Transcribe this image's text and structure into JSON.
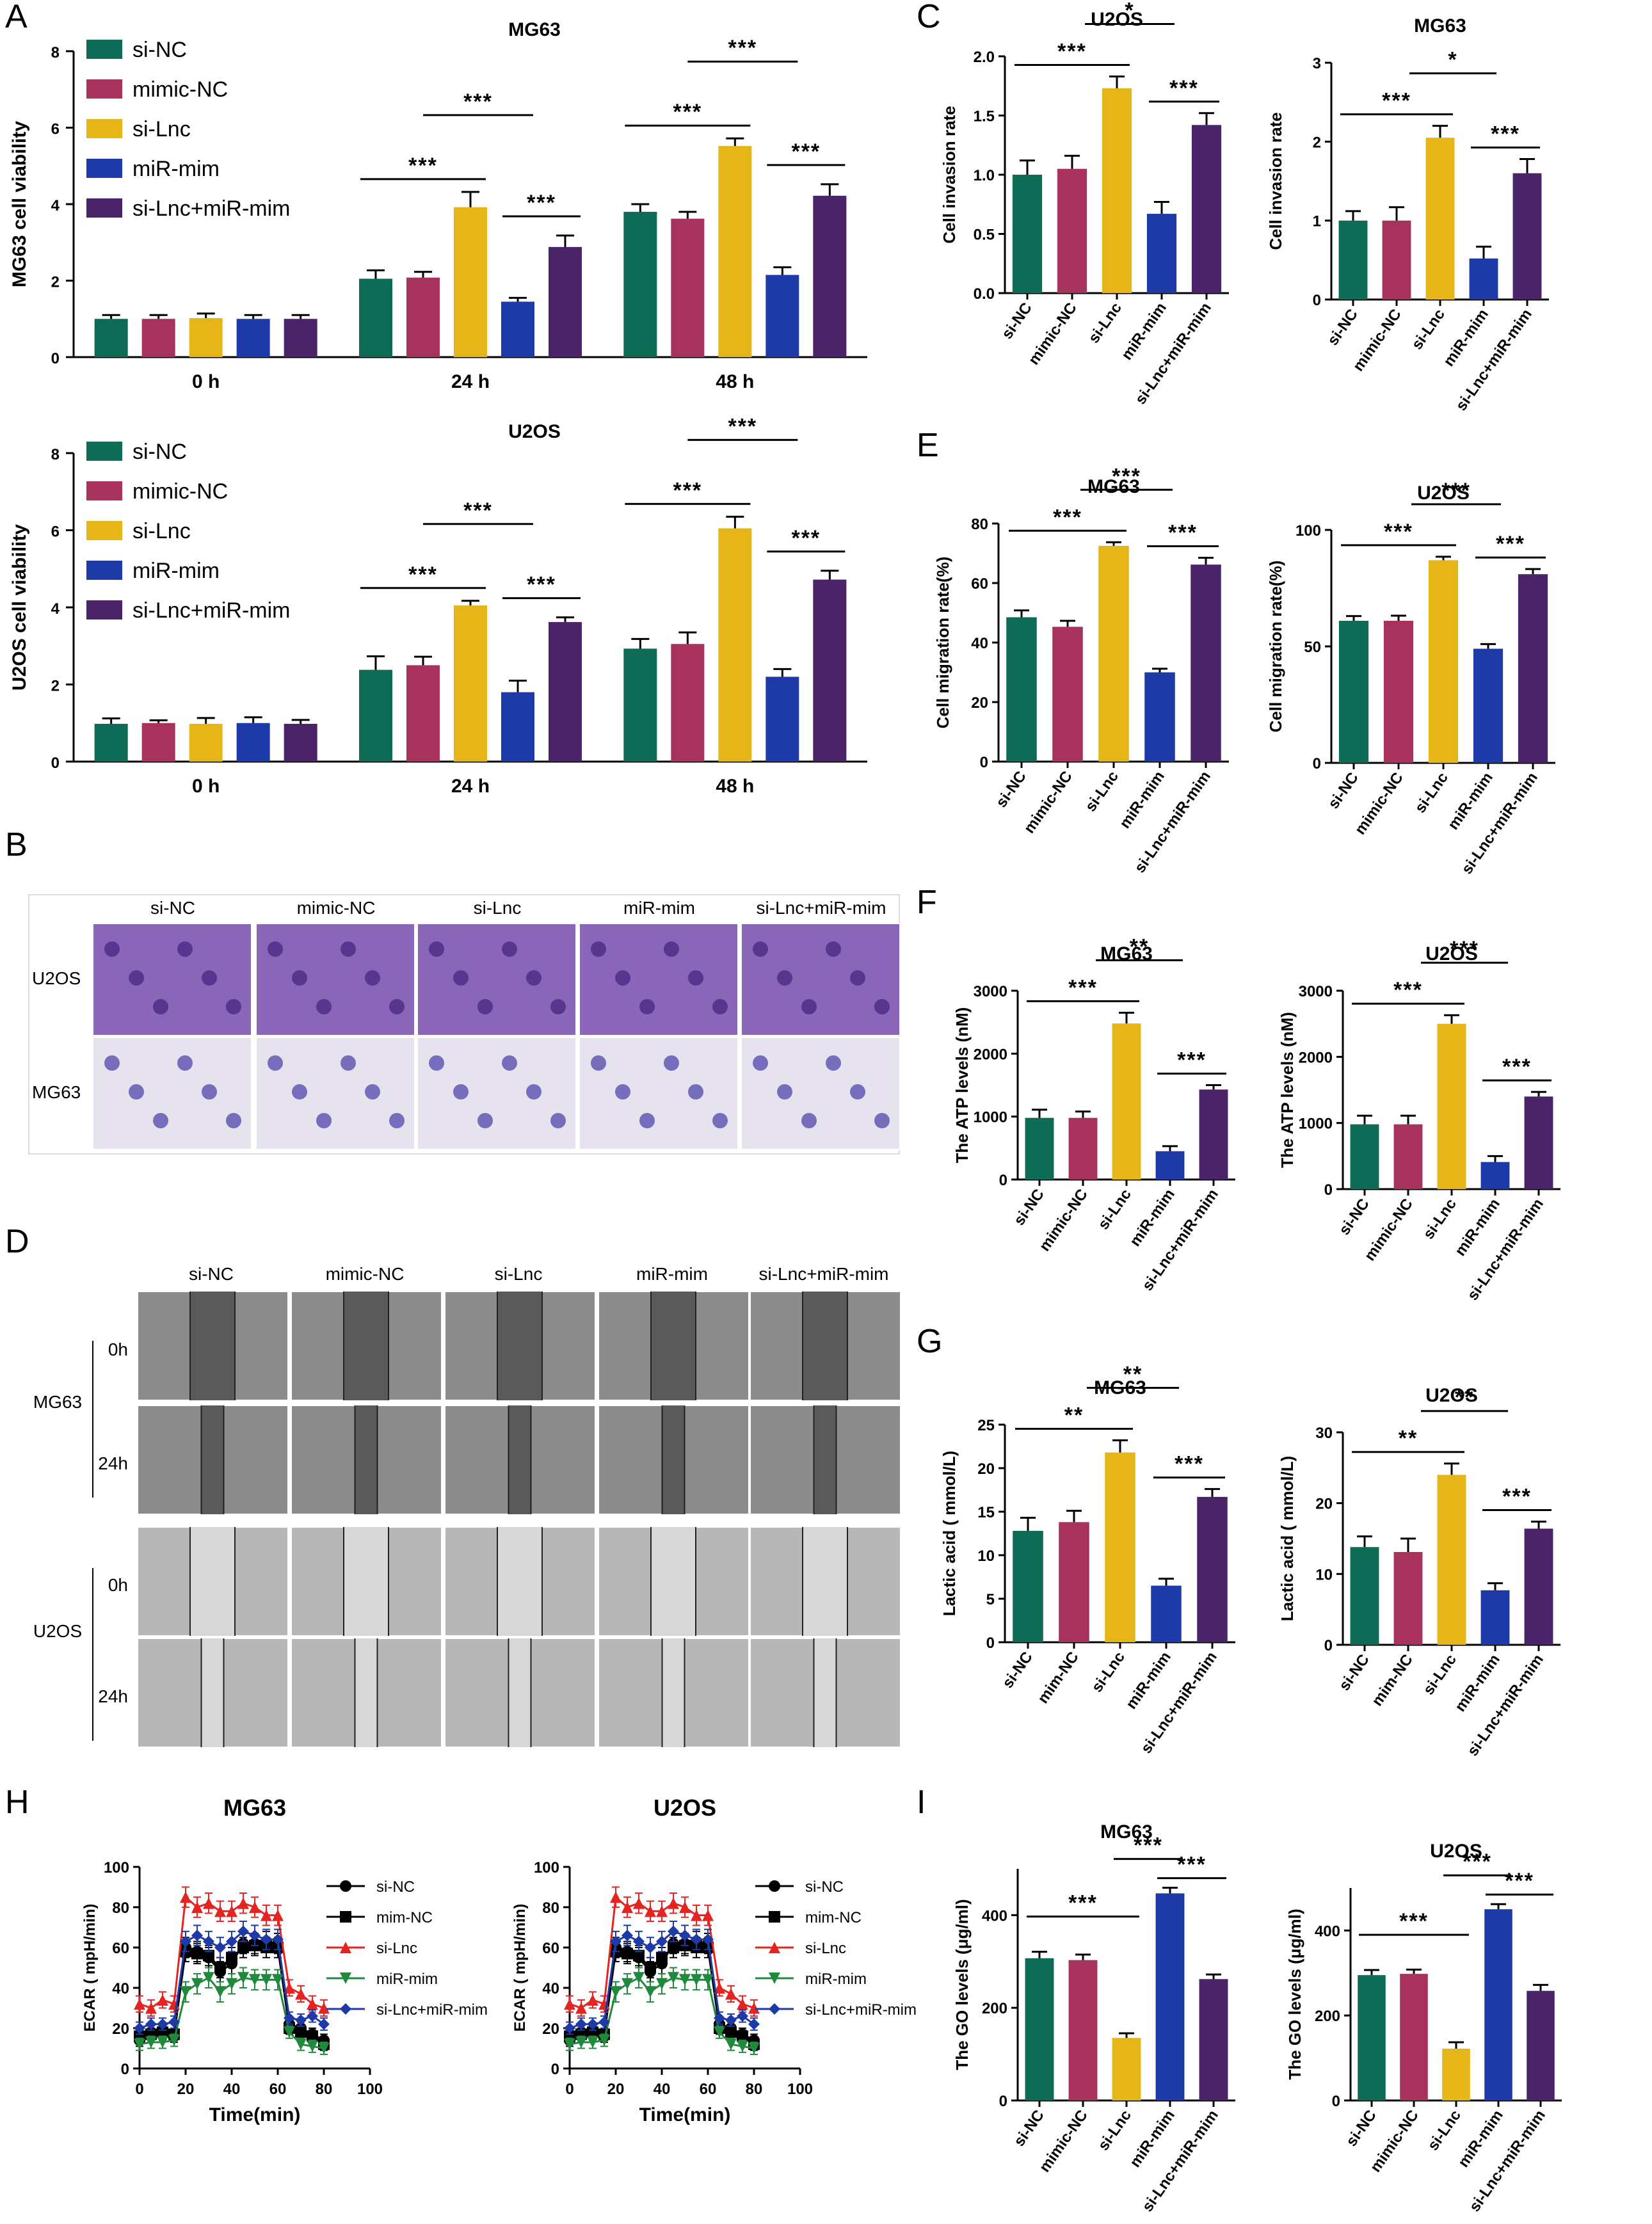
{
  "panel_letters": [
    "A",
    "B",
    "C",
    "D",
    "E",
    "F",
    "G",
    "H",
    "I"
  ],
  "group_labels": [
    "si-NC",
    "mimic-NC",
    "si-Lnc",
    "miR-mim",
    "si-Lnc+miR-mim"
  ],
  "group_labels_short": [
    "si-NC",
    "mim-NC",
    "si-Lnc",
    "miR-mim",
    "si-Lnc+miR-mim"
  ],
  "colors": {
    "si-NC": "#0e6b55",
    "mimic-NC": "#a8325e",
    "si-Lnc": "#e6b619",
    "miR-mim": "#1d3aa6",
    "si-Lnc+miR-mim": "#4a2368"
  },
  "photo_panels": {
    "B": {
      "columns": [
        "si-NC",
        "mimic-NC",
        "si-Lnc",
        "miR-mim",
        "si-Lnc+miR-mim"
      ],
      "rows": [
        "U2OS",
        "MG63"
      ]
    },
    "D": {
      "columns": [
        "si-NC",
        "mimic-NC",
        "si-Lnc",
        "miR-mim",
        "si-Lnc+miR-mim"
      ],
      "cell_lines": [
        "MG63",
        "U2OS"
      ],
      "times": [
        "0h",
        "24h"
      ]
    }
  },
  "chart_data": [
    {
      "id": "A1",
      "type": "bar",
      "title": "MG63",
      "ylabel": "MG63 cell viability",
      "xlabel": "",
      "categories": [
        "0 h",
        "24 h",
        "48 h"
      ],
      "ylim": [
        0,
        8
      ],
      "yticks": [
        0,
        2,
        4,
        6,
        8
      ],
      "series": [
        {
          "name": "si-NC",
          "values": [
            1.0,
            2.05,
            3.8
          ],
          "errors": [
            0.1,
            0.22,
            0.2
          ]
        },
        {
          "name": "mimic-NC",
          "values": [
            1.0,
            2.08,
            3.62
          ],
          "errors": [
            0.1,
            0.15,
            0.18
          ]
        },
        {
          "name": "si-Lnc",
          "values": [
            1.02,
            3.92,
            5.52
          ],
          "errors": [
            0.12,
            0.4,
            0.2
          ]
        },
        {
          "name": "miR-mim",
          "values": [
            1.0,
            1.45,
            2.15
          ],
          "errors": [
            0.1,
            0.1,
            0.2
          ]
        },
        {
          "name": "si-Lnc+miR-mim",
          "values": [
            1.0,
            2.88,
            4.22
          ],
          "errors": [
            0.1,
            0.3,
            0.3
          ]
        }
      ],
      "significance": [
        "***",
        "***",
        "***",
        "***",
        "***",
        "***"
      ]
    },
    {
      "id": "A2",
      "type": "bar",
      "title": "U2OS",
      "ylabel": "U2OS cell viability",
      "xlabel": "",
      "categories": [
        "0 h",
        "24 h",
        "48 h"
      ],
      "ylim": [
        0,
        8
      ],
      "yticks": [
        0,
        2,
        4,
        6,
        8
      ],
      "series": [
        {
          "name": "si-NC",
          "values": [
            0.98,
            2.38,
            2.93
          ],
          "errors": [
            0.14,
            0.35,
            0.25
          ]
        },
        {
          "name": "mimic-NC",
          "values": [
            1.0,
            2.5,
            3.05
          ],
          "errors": [
            0.07,
            0.22,
            0.3
          ]
        },
        {
          "name": "si-Lnc",
          "values": [
            0.98,
            4.05,
            6.05
          ],
          "errors": [
            0.15,
            0.12,
            0.3
          ]
        },
        {
          "name": "miR-mim",
          "values": [
            1.0,
            1.8,
            2.2
          ],
          "errors": [
            0.15,
            0.3,
            0.2
          ]
        },
        {
          "name": "si-Lnc+miR-mim",
          "values": [
            0.98,
            3.62,
            4.72
          ],
          "errors": [
            0.1,
            0.12,
            0.23
          ]
        }
      ],
      "significance": [
        "***",
        "***",
        "***",
        "***",
        "***",
        "***"
      ]
    },
    {
      "id": "C1",
      "type": "bar",
      "title": "U2OS",
      "ylabel": "Cell invasion rate",
      "ylim": [
        0,
        2.0
      ],
      "yticks": [
        "0.0",
        "0.5",
        "1.0",
        "1.5",
        "2.0"
      ],
      "categories": [
        "si-NC",
        "mimic-NC",
        "si-Lnc",
        "miR-mim",
        "si-Lnc+miR-mim"
      ],
      "values": [
        1.0,
        1.05,
        1.73,
        0.67,
        1.42
      ],
      "errors": [
        0.12,
        0.11,
        0.1,
        0.1,
        0.1
      ],
      "significance": [
        "***",
        "*",
        "***"
      ]
    },
    {
      "id": "C2",
      "type": "bar",
      "title": "MG63",
      "ylabel": "Cell invasion rate",
      "ylim": [
        0,
        3
      ],
      "yticks": [
        "0",
        "1",
        "2",
        "3"
      ],
      "categories": [
        "si-NC",
        "mimic-NC",
        "si-Lnc",
        "miR-mim",
        "si-Lnc+miR-mim"
      ],
      "values": [
        1.0,
        1.0,
        2.05,
        0.52,
        1.6
      ],
      "errors": [
        0.12,
        0.17,
        0.15,
        0.15,
        0.18
      ],
      "significance": [
        "***",
        "*",
        "***"
      ]
    },
    {
      "id": "E1",
      "type": "bar",
      "title": "MG63",
      "ylabel": "Cell migration rate(%)",
      "ylim": [
        0,
        80
      ],
      "yticks": [
        "0",
        "20",
        "40",
        "60",
        "80"
      ],
      "categories": [
        "si-NC",
        "mimic-NC",
        "si-Lnc",
        "miR-mim",
        "si-Lnc+miR-mim"
      ],
      "values": [
        48.5,
        45.3,
        72.5,
        30.0,
        66.2
      ],
      "errors": [
        2.3,
        2.0,
        1.2,
        1.2,
        2.3
      ],
      "significance": [
        "***",
        "***",
        "***"
      ]
    },
    {
      "id": "E2",
      "type": "bar",
      "title": "U2OS",
      "ylabel": "Cell migration rate(%)",
      "ylim": [
        0,
        100
      ],
      "yticks": [
        "0",
        "50",
        "100"
      ],
      "categories": [
        "si-NC",
        "mimic-NC",
        "si-Lnc",
        "miR-mim",
        "si-Lnc+miR-mim"
      ],
      "values": [
        61.0,
        61.0,
        87.0,
        49.0,
        81.0
      ],
      "errors": [
        2.0,
        2.2,
        1.5,
        2.0,
        2.2
      ],
      "significance": [
        "***",
        "***",
        "***"
      ]
    },
    {
      "id": "F1",
      "type": "bar",
      "title": "MG63",
      "ylabel": "The ATP levels (nM)",
      "ylim": [
        0,
        3000
      ],
      "yticks": [
        "0",
        "1000",
        "2000",
        "3000"
      ],
      "categories": [
        "si-NC",
        "mimic-NC",
        "si-Lnc",
        "miR-mim",
        "si-Lnc+miR-mim"
      ],
      "values": [
        980,
        980,
        2480,
        450,
        1430
      ],
      "errors": [
        130,
        100,
        170,
        80,
        70
      ],
      "significance": [
        "***",
        "**",
        "***"
      ]
    },
    {
      "id": "F2",
      "type": "bar",
      "title": "U2OS",
      "ylabel": "The ATP levels (nM)",
      "ylim": [
        0,
        3000
      ],
      "yticks": [
        "0",
        "1000",
        "2000",
        "3000"
      ],
      "categories": [
        "si-NC",
        "mimic-NC",
        "si-Lnc",
        "miR-mim",
        "si-Lnc+miR-mim"
      ],
      "values": [
        980,
        980,
        2500,
        410,
        1400
      ],
      "errors": [
        130,
        130,
        130,
        90,
        70
      ],
      "significance": [
        "***",
        "***",
        "***"
      ]
    },
    {
      "id": "G1",
      "type": "bar",
      "title": "MG63",
      "ylabel": "Lactic acid ( mmol/L)",
      "ylim": [
        0,
        25
      ],
      "yticks": [
        "0",
        "5",
        "10",
        "15",
        "20",
        "25"
      ],
      "categories": [
        "si-NC",
        "mim-NC",
        "si-Lnc",
        "miR-mim",
        "si-Lnc+miR-mim"
      ],
      "values": [
        12.8,
        13.8,
        21.8,
        6.5,
        16.7
      ],
      "errors": [
        1.5,
        1.3,
        1.4,
        0.8,
        0.9
      ],
      "significance": [
        "**",
        "**",
        "***"
      ]
    },
    {
      "id": "G2",
      "type": "bar",
      "title": "U2OS",
      "ylabel": "Lactic acid ( mmol/L)",
      "ylim": [
        0,
        30
      ],
      "yticks": [
        "0",
        "10",
        "20",
        "30"
      ],
      "categories": [
        "si-NC",
        "mim-NC",
        "si-Lnc",
        "miR-mim",
        "si-Lnc+miR-mim"
      ],
      "values": [
        13.8,
        13.1,
        24.0,
        7.7,
        16.4
      ],
      "errors": [
        1.5,
        1.9,
        1.6,
        1.0,
        1.0
      ],
      "significance": [
        "**",
        "**",
        "***"
      ]
    },
    {
      "id": "H1",
      "type": "line",
      "title": "MG63",
      "ylabel": "ECAR ( mpH/min)",
      "xlabel": "Time(min)",
      "xlim": [
        0,
        100
      ],
      "ylim": [
        0,
        100
      ],
      "xticks": [
        "0",
        "20",
        "40",
        "60",
        "80",
        "100"
      ],
      "yticks": [
        "0",
        "20",
        "40",
        "60",
        "80",
        "100"
      ],
      "x": [
        0,
        5,
        10,
        15,
        20,
        25,
        30,
        35,
        40,
        45,
        50,
        55,
        60,
        65,
        70,
        75,
        80
      ],
      "series": [
        {
          "name": "si-NC",
          "marker": "circle",
          "color": "#000000",
          "values": [
            14,
            16,
            17,
            16,
            60,
            58,
            55,
            48,
            52,
            62,
            62,
            63,
            62,
            22,
            20,
            17,
            14
          ],
          "errors": [
            3,
            3,
            3,
            3,
            5,
            5,
            5,
            5,
            5,
            5,
            5,
            5,
            5,
            3,
            3,
            3,
            3
          ]
        },
        {
          "name": "mim-NC",
          "marker": "square",
          "color": "#000000",
          "values": [
            16,
            17,
            18,
            17,
            58,
            57,
            56,
            50,
            55,
            60,
            61,
            60,
            60,
            20,
            18,
            16,
            12
          ],
          "errors": [
            3,
            3,
            3,
            3,
            5,
            5,
            5,
            5,
            5,
            5,
            5,
            5,
            5,
            3,
            3,
            3,
            3
          ]
        },
        {
          "name": "si-Lnc",
          "marker": "triangle",
          "color": "#e52421",
          "values": [
            32,
            30,
            34,
            32,
            85,
            80,
            82,
            78,
            78,
            82,
            80,
            76,
            76,
            40,
            37,
            32,
            30
          ],
          "errors": [
            4,
            4,
            4,
            4,
            5,
            5,
            5,
            5,
            5,
            5,
            5,
            5,
            5,
            4,
            4,
            4,
            4
          ]
        },
        {
          "name": "miR-mim",
          "marker": "invtriangle",
          "color": "#1f8a3c",
          "values": [
            12,
            13,
            13,
            14,
            38,
            42,
            45,
            38,
            42,
            45,
            44,
            44,
            44,
            18,
            12,
            11,
            10
          ],
          "errors": [
            3,
            3,
            3,
            3,
            5,
            5,
            5,
            5,
            5,
            5,
            5,
            5,
            5,
            3,
            3,
            3,
            3
          ]
        },
        {
          "name": "si-Lnc+miR-mim",
          "marker": "diamond",
          "color": "#1d3aa6",
          "values": [
            20,
            22,
            22,
            23,
            63,
            66,
            63,
            60,
            63,
            68,
            66,
            64,
            64,
            25,
            24,
            26,
            22
          ],
          "errors": [
            3,
            3,
            3,
            3,
            5,
            5,
            5,
            5,
            5,
            5,
            5,
            5,
            5,
            3,
            3,
            3,
            3
          ]
        }
      ]
    },
    {
      "id": "H2",
      "type": "line",
      "title": "U2OS",
      "ylabel": "ECAR ( mpH/min)",
      "xlabel": "Time(min)",
      "xlim": [
        0,
        100
      ],
      "ylim": [
        0,
        100
      ],
      "xticks": [
        "0",
        "20",
        "40",
        "60",
        "80",
        "100"
      ],
      "yticks": [
        "0",
        "20",
        "40",
        "60",
        "80",
        "100"
      ],
      "x": [
        0,
        5,
        10,
        15,
        20,
        25,
        30,
        35,
        40,
        45,
        50,
        55,
        60,
        65,
        70,
        75,
        80
      ],
      "series": [
        {
          "name": "si-NC",
          "marker": "circle",
          "color": "#000000",
          "values": [
            14,
            16,
            17,
            16,
            60,
            58,
            55,
            48,
            52,
            62,
            62,
            63,
            62,
            22,
            20,
            17,
            14
          ],
          "errors": [
            3,
            3,
            3,
            3,
            5,
            5,
            5,
            5,
            5,
            5,
            5,
            5,
            5,
            3,
            3,
            3,
            3
          ]
        },
        {
          "name": "mim-NC",
          "marker": "square",
          "color": "#000000",
          "values": [
            16,
            17,
            18,
            17,
            58,
            57,
            56,
            50,
            55,
            60,
            61,
            60,
            60,
            20,
            18,
            16,
            12
          ],
          "errors": [
            3,
            3,
            3,
            3,
            5,
            5,
            5,
            5,
            5,
            5,
            5,
            5,
            5,
            3,
            3,
            3,
            3
          ]
        },
        {
          "name": "si-Lnc",
          "marker": "triangle",
          "color": "#e52421",
          "values": [
            32,
            30,
            34,
            32,
            85,
            80,
            82,
            78,
            78,
            82,
            80,
            76,
            76,
            40,
            37,
            32,
            30
          ],
          "errors": [
            4,
            4,
            4,
            4,
            5,
            5,
            5,
            5,
            5,
            5,
            5,
            5,
            5,
            4,
            4,
            4,
            4
          ]
        },
        {
          "name": "miR-mim",
          "marker": "invtriangle",
          "color": "#1f8a3c",
          "values": [
            12,
            13,
            13,
            14,
            38,
            42,
            45,
            38,
            42,
            45,
            44,
            44,
            44,
            18,
            12,
            11,
            10
          ],
          "errors": [
            3,
            3,
            3,
            3,
            5,
            5,
            5,
            5,
            5,
            5,
            5,
            5,
            5,
            3,
            3,
            3,
            3
          ]
        },
        {
          "name": "si-Lnc+miR-mim",
          "marker": "diamond",
          "color": "#1d3aa6",
          "values": [
            20,
            22,
            22,
            23,
            63,
            66,
            63,
            60,
            63,
            68,
            66,
            64,
            64,
            25,
            24,
            26,
            22
          ],
          "errors": [
            3,
            3,
            3,
            3,
            5,
            5,
            5,
            5,
            5,
            5,
            5,
            5,
            5,
            3,
            3,
            3,
            3
          ]
        }
      ]
    },
    {
      "id": "I1",
      "type": "bar",
      "title": "MG63",
      "ylabel": "The GO levels (μg/ml)",
      "ylim": [
        0,
        500
      ],
      "yticks": [
        "0",
        "200",
        "400"
      ],
      "categories": [
        "si-NC",
        "mimic-NC",
        "si-Lnc",
        "miR-mim",
        "si-Lnc+miR-mim"
      ],
      "values": [
        307,
        303,
        135,
        447,
        262
      ],
      "errors": [
        14,
        12,
        10,
        12,
        10
      ],
      "significance": [
        "***",
        "***",
        "***"
      ]
    },
    {
      "id": "I2",
      "type": "bar",
      "title": "U2OS",
      "ylabel": "The GO levels (μg/ml)",
      "ylim": [
        0,
        500
      ],
      "yticks": [
        "0",
        "200",
        "400"
      ],
      "categories": [
        "si-NC",
        "mimic-NC",
        "si-Lnc",
        "miR-mim",
        "si-Lnc+miR-mim"
      ],
      "values": [
        295,
        298,
        122,
        450,
        258
      ],
      "errors": [
        12,
        10,
        15,
        12,
        14
      ],
      "significance": [
        "***",
        "***",
        "***"
      ]
    }
  ]
}
